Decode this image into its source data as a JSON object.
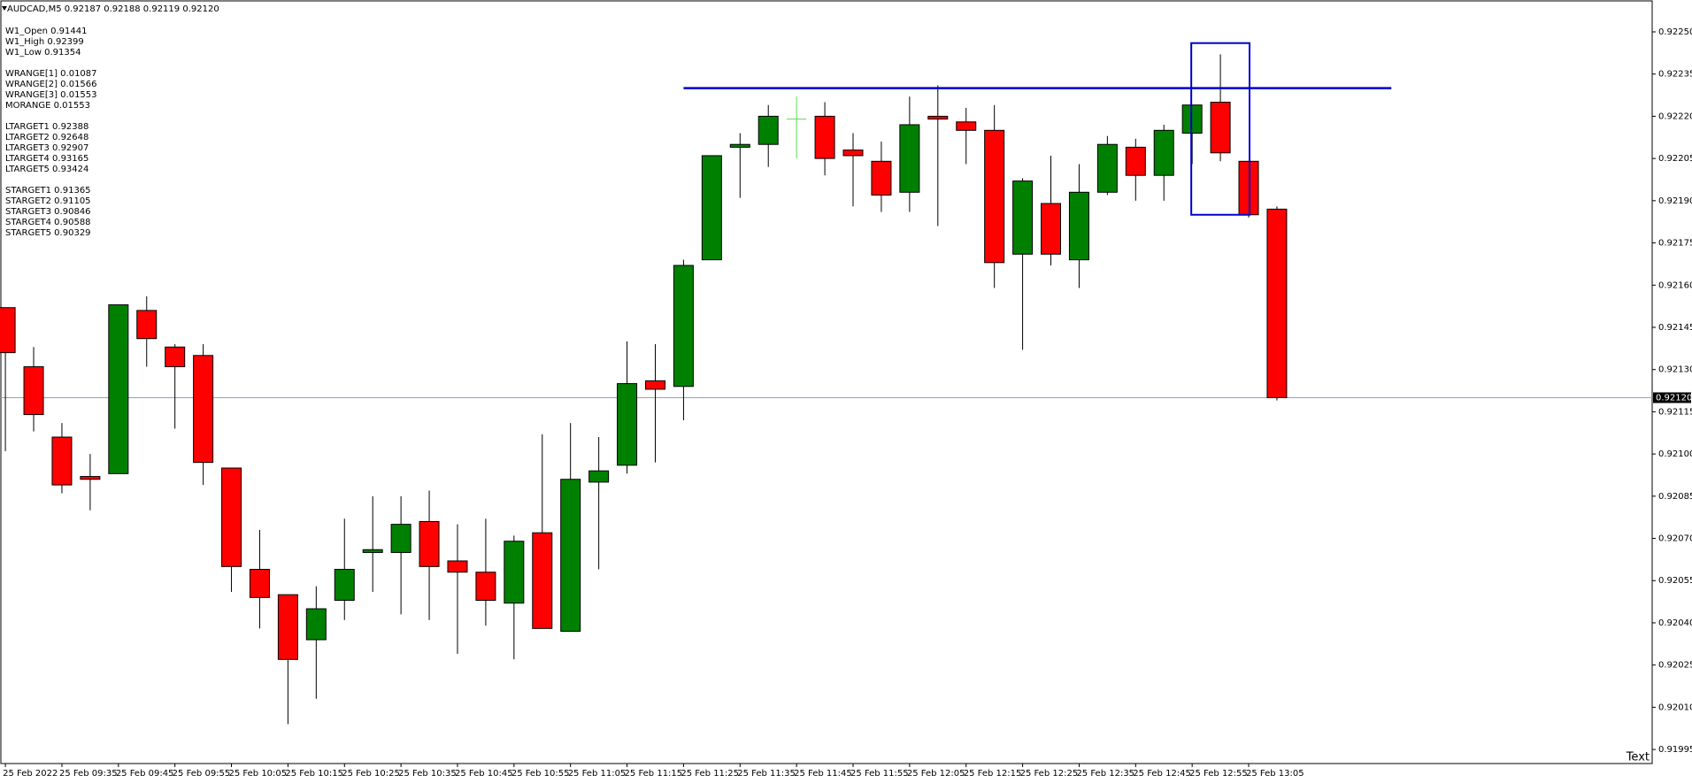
{
  "chart_data": {
    "type": "candlestick",
    "title": "AUDCAD,M5  0.92187 0.92188 0.92119 0.92120",
    "info_groups": [
      [
        "W1_Open 0.91441",
        "W1_High 0.92399",
        "W1_Low 0.91354"
      ],
      [
        "WRANGE[1] 0.01087",
        "WRANGE[2] 0.01566",
        "WRANGE[3] 0.01553",
        "MORANGE 0.01553"
      ],
      [
        "LTARGET1 0.92388",
        "LTARGET2 0.92648",
        "LTARGET3 0.92907",
        "LTARGET4 0.93165",
        "LTARGET5 0.93424"
      ],
      [
        "STARGET1 0.91365",
        "STARGET2 0.91105",
        "STARGET3 0.90846",
        "STARGET4 0.90588",
        "STARGET5 0.90329"
      ]
    ],
    "categories": [
      "25 Feb 2022",
      null,
      "25 Feb 09:35",
      null,
      "25 Feb 09:45",
      null,
      "25 Feb 09:55",
      null,
      "25 Feb 10:05",
      null,
      "25 Feb 10:15",
      null,
      "25 Feb 10:25",
      null,
      "25 Feb 10:35",
      null,
      "25 Feb 10:45",
      null,
      "25 Feb 10:55",
      null,
      "25 Feb 11:05",
      null,
      "25 Feb 11:15",
      null,
      "25 Feb 11:25",
      null,
      "25 Feb 11:35",
      null,
      "25 Feb 11:45",
      null,
      "25 Feb 11:55",
      null,
      "25 Feb 12:05",
      null,
      "25 Feb 12:15",
      null,
      "25 Feb 12:25",
      null,
      "25 Feb 12:35",
      null,
      "25 Feb 12:45",
      null,
      "25 Feb 12:55",
      null,
      "25 Feb 13:05",
      null
    ],
    "open": [
      0.92152,
      0.92131,
      0.92106,
      0.92092,
      0.92093,
      0.92151,
      0.92138,
      0.92135,
      0.92095,
      0.92059,
      0.9205,
      0.92034,
      0.92048,
      0.92065,
      0.92065,
      0.92076,
      0.92062,
      0.92058,
      0.92047,
      0.92072,
      0.92037,
      0.9209,
      0.92096,
      0.92126,
      0.92124,
      0.92169,
      0.92209,
      0.9221,
      0.92219,
      0.9222,
      0.92208,
      0.92204,
      0.92193,
      0.9222,
      0.92218,
      0.92215,
      0.92171,
      0.92189,
      0.92169,
      0.92193,
      0.92209,
      0.92199,
      0.92214,
      0.92225,
      0.92204,
      0.92187
    ],
    "high": [
      0.92152,
      0.92138,
      0.92111,
      0.921,
      0.92153,
      0.92156,
      0.92139,
      0.92139,
      0.92095,
      0.92073,
      0.9205,
      0.92053,
      0.92077,
      0.92085,
      0.92085,
      0.92087,
      0.92075,
      0.92077,
      0.92071,
      0.92107,
      0.92111,
      0.92106,
      0.9214,
      0.92139,
      0.92169,
      0.92206,
      0.92214,
      0.92224,
      0.92227,
      0.92225,
      0.92214,
      0.92211,
      0.92227,
      0.92231,
      0.92223,
      0.92224,
      0.92198,
      0.92206,
      0.92203,
      0.92213,
      0.92212,
      0.92217,
      0.92224,
      0.92242,
      0.92204,
      0.92188
    ],
    "low": [
      0.92101,
      0.92108,
      0.92086,
      0.9208,
      0.92093,
      0.92131,
      0.92109,
      0.92089,
      0.92051,
      0.92038,
      0.92004,
      0.92013,
      0.92041,
      0.92051,
      0.92043,
      0.92041,
      0.92029,
      0.92039,
      0.92027,
      0.92038,
      0.92037,
      0.92059,
      0.92093,
      0.92097,
      0.92112,
      0.92169,
      0.92191,
      0.92202,
      0.92205,
      0.92199,
      0.92188,
      0.92186,
      0.92186,
      0.92181,
      0.92203,
      0.92159,
      0.92137,
      0.92167,
      0.92159,
      0.92192,
      0.9219,
      0.9219,
      0.92203,
      0.92204,
      0.92184,
      0.92119
    ],
    "close": [
      0.92136,
      0.92114,
      0.92089,
      0.92091,
      0.92153,
      0.92141,
      0.92131,
      0.92097,
      0.9206,
      0.92049,
      0.92027,
      0.92045,
      0.92059,
      0.92066,
      0.92075,
      0.9206,
      0.92058,
      0.92048,
      0.92069,
      0.92038,
      0.92091,
      0.92094,
      0.92125,
      0.92123,
      0.92167,
      0.92206,
      0.9221,
      0.9222,
      0.92219,
      0.92205,
      0.92206,
      0.92192,
      0.92217,
      0.92219,
      0.92215,
      0.92168,
      0.92197,
      0.92171,
      0.92193,
      0.9221,
      0.92199,
      0.92215,
      0.92224,
      0.92207,
      0.92185,
      0.9212
    ],
    "up_color": "#008000",
    "down_color": "#ff0000",
    "doji_color": "#55dd55",
    "ylim": [
      0.9199,
      0.92261
    ],
    "yticks": [
      {
        "value": 0.9225,
        "label": "0.92250"
      },
      {
        "value": 0.92235,
        "label": "0.92235"
      },
      {
        "value": 0.9222,
        "label": "0.92220"
      },
      {
        "value": 0.92205,
        "label": "0.92205"
      },
      {
        "value": 0.9219,
        "label": "0.92190"
      },
      {
        "value": 0.92175,
        "label": "0.92175"
      },
      {
        "value": 0.9216,
        "label": "0.92160"
      },
      {
        "value": 0.92145,
        "label": "0.92145"
      },
      {
        "value": 0.9213,
        "label": "0.92130"
      },
      {
        "value": 0.92115,
        "label": "0.92115"
      },
      {
        "value": 0.921,
        "label": "0.92100"
      },
      {
        "value": 0.92085,
        "label": "0.92085"
      },
      {
        "value": 0.9207,
        "label": "0.92070"
      },
      {
        "value": 0.92055,
        "label": "0.92055"
      },
      {
        "value": 0.9204,
        "label": "0.92040"
      },
      {
        "value": 0.92025,
        "label": "0.92025"
      },
      {
        "value": 0.9201,
        "label": "0.92010"
      },
      {
        "value": 0.91995,
        "label": "0.91995"
      }
    ],
    "bid": {
      "value": 0.9212,
      "label": "0.92120"
    },
    "bid_color": "#8fa3bf",
    "level_line": {
      "price": 0.9223,
      "color": "#0000cc"
    },
    "box": {
      "top": 0.92246,
      "bottom": 0.92185,
      "color": "#0000cc"
    },
    "corner_text": "Text"
  }
}
